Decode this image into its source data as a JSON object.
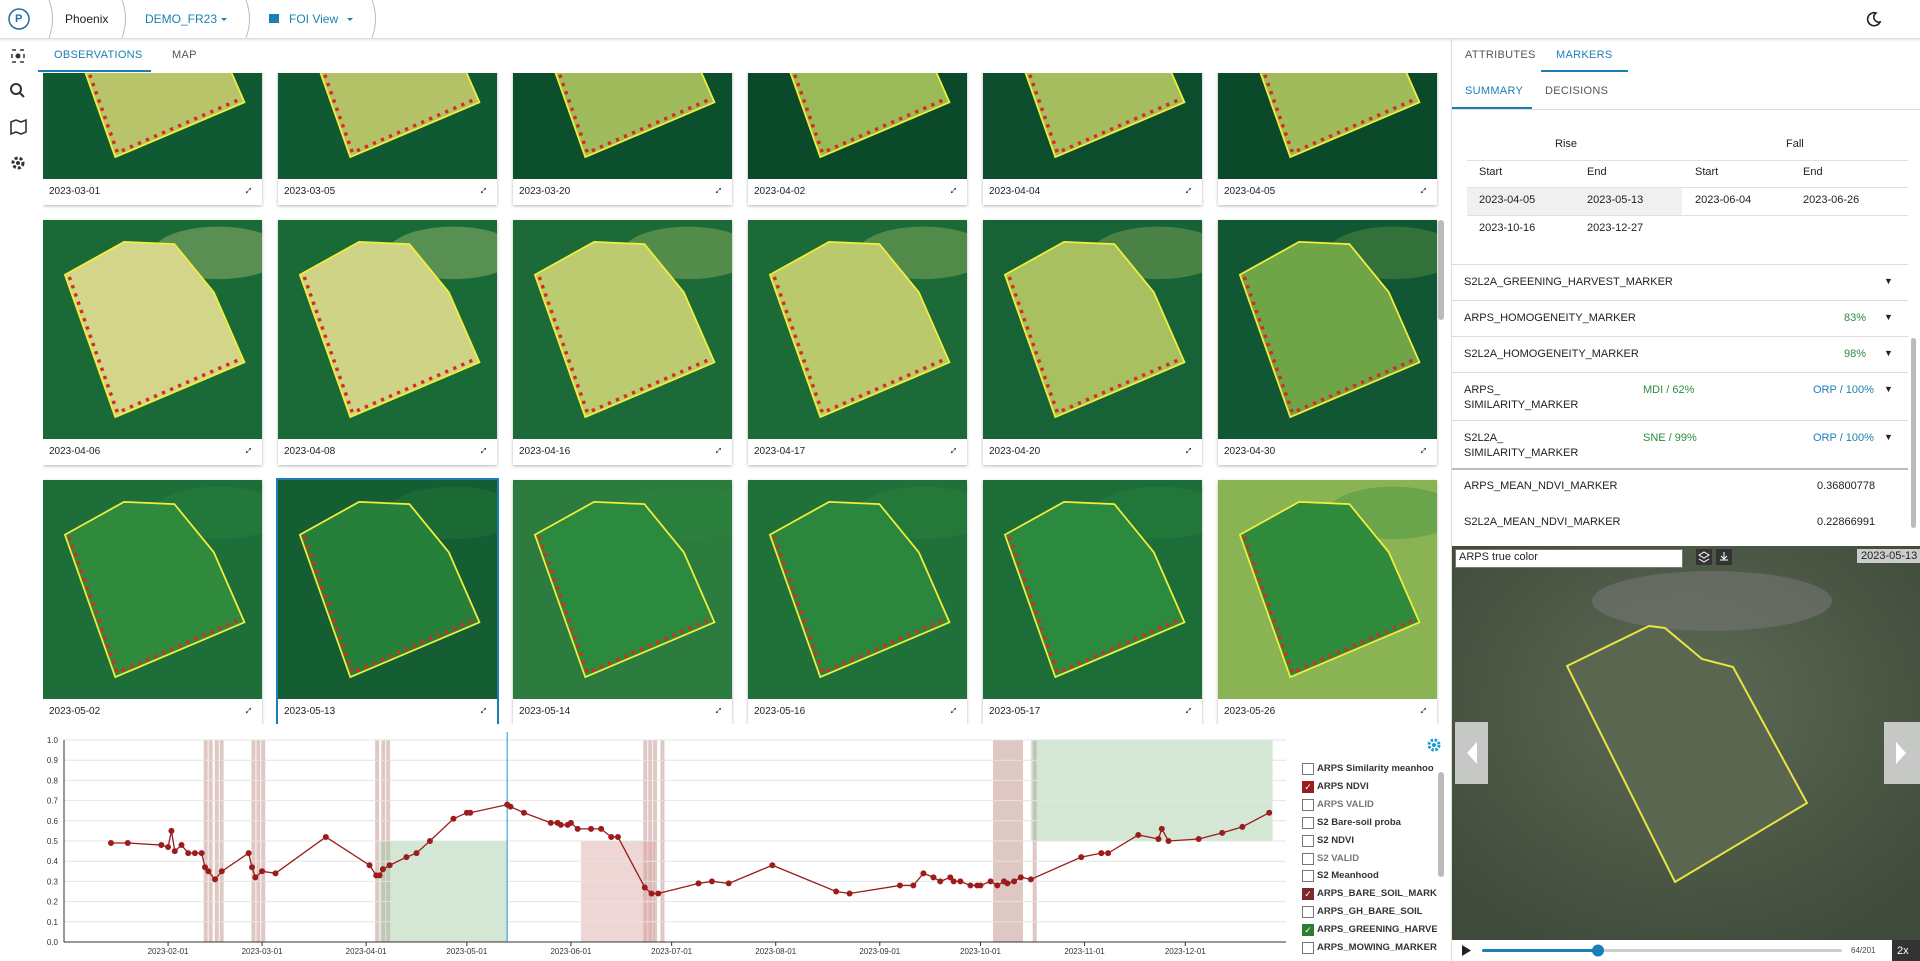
{
  "header": {
    "logo": "P",
    "app": "Phoenix",
    "project": "DEMO_FR23",
    "view": "FOI View"
  },
  "left_tabs": [
    "OBSERVATIONS",
    "MAP"
  ],
  "thumbnails": [
    "2023-03-01",
    "2023-03-05",
    "2023-03-20",
    "2023-04-02",
    "2023-04-04",
    "2023-04-05",
    "2023-04-06",
    "2023-04-08",
    "2023-04-16",
    "2023-04-17",
    "2023-04-20",
    "2023-04-30",
    "2023-05-02",
    "2023-05-13",
    "2023-05-14",
    "2023-05-16",
    "2023-05-17",
    "2023-05-26"
  ],
  "right_tabs": [
    "ATTRIBUTES",
    "MARKERS"
  ],
  "sub_tabs": [
    "SUMMARY",
    "DECISIONS"
  ],
  "summary": {
    "groups": [
      "Rise",
      "Fall"
    ],
    "columns": [
      "Start",
      "End",
      "Start",
      "End"
    ],
    "rows": [
      [
        "2023-04-05",
        "2023-05-13",
        "2023-06-04",
        "2023-06-26"
      ],
      [
        "2023-10-16",
        "2023-12-27"
      ]
    ]
  },
  "markers": [
    {
      "name": [
        "S2L2A_GREENING_HARVEST_MARKER"
      ]
    },
    {
      "name": [
        "ARPS_HOMOGENEITY_MARKER"
      ],
      "value": "83%"
    },
    {
      "name": [
        "S2L2A_HOMOGENEITY_MARKER"
      ],
      "value": "98%"
    },
    {
      "name": [
        "ARPS_",
        "SIMILARITY_MARKER"
      ],
      "left": "MDI / 62%",
      "right": "ORP / 100%"
    },
    {
      "name": [
        "S2L2A_",
        "SIMILARITY_MARKER"
      ],
      "left": "SNE / 99%",
      "right": "ORP / 100%"
    },
    {
      "name": [
        "ARPS_MEAN_NDVI_MARKER"
      ],
      "number": "0.36800778"
    },
    {
      "name": [
        "S2L2A_MEAN_NDVI_MARKER"
      ],
      "number": "0.22866991"
    }
  ],
  "viewer": {
    "layer": "ARPS true color",
    "date": "2023-05-13",
    "frame": "64/201",
    "speed": "2x"
  },
  "chart": {
    "type": "line",
    "x": [
      "2023-01-15",
      "2023-01-20",
      "2023-01-30",
      "2023-02-01",
      "2023-02-02",
      "2023-02-03",
      "2023-02-05",
      "2023-02-07",
      "2023-02-09",
      "2023-02-11",
      "2023-02-12",
      "2023-02-13",
      "2023-02-15",
      "2023-02-17",
      "2023-02-25",
      "2023-02-26",
      "2023-02-27",
      "2023-03-01",
      "2023-03-05",
      "2023-03-20",
      "2023-04-02",
      "2023-04-04",
      "2023-04-05",
      "2023-04-06",
      "2023-04-08",
      "2023-04-13",
      "2023-04-16",
      "2023-04-20",
      "2023-04-27",
      "2023-05-01",
      "2023-05-02",
      "2023-05-13",
      "2023-05-14",
      "2023-05-18",
      "2023-05-26",
      "2023-05-28",
      "2023-05-29",
      "2023-05-31",
      "2023-06-01",
      "2023-06-03",
      "2023-06-07",
      "2023-06-10",
      "2023-06-13",
      "2023-06-15",
      "2023-06-23",
      "2023-06-25",
      "2023-06-27",
      "2023-07-09",
      "2023-07-13",
      "2023-07-18",
      "2023-07-31",
      "2023-08-19",
      "2023-08-23",
      "2023-09-07",
      "2023-09-11",
      "2023-09-14",
      "2023-09-17",
      "2023-09-19",
      "2023-09-22",
      "2023-09-23",
      "2023-09-25",
      "2023-09-28",
      "2023-09-30",
      "2023-10-01",
      "2023-10-04",
      "2023-10-06",
      "2023-10-08",
      "2023-10-09",
      "2023-10-11",
      "2023-10-13",
      "2023-10-16",
      "2023-10-31",
      "2023-11-06",
      "2023-11-08",
      "2023-11-17",
      "2023-11-23",
      "2023-11-24",
      "2023-11-26",
      "2023-12-05",
      "2023-12-12",
      "2023-12-18",
      "2023-12-26"
    ],
    "series": [
      {
        "color": "#9b1c1c",
        "values": [
          0.49,
          0.49,
          0.48,
          0.47,
          0.55,
          0.45,
          0.48,
          0.44,
          0.44,
          0.44,
          0.37,
          0.35,
          0.31,
          0.35,
          0.44,
          0.37,
          0.32,
          0.35,
          0.34,
          0.52,
          0.38,
          0.33,
          0.33,
          0.36,
          0.38,
          0.42,
          0.44,
          0.5,
          0.61,
          0.64,
          0.64,
          0.68,
          0.67,
          0.64,
          0.59,
          0.59,
          0.58,
          0.58,
          0.59,
          0.56,
          0.56,
          0.56,
          0.52,
          0.52,
          0.27,
          0.24,
          0.24,
          0.29,
          0.3,
          0.29,
          0.38,
          0.25,
          0.24,
          0.28,
          0.28,
          0.34,
          0.32,
          0.3,
          0.32,
          0.3,
          0.3,
          0.28,
          0.28,
          0.28,
          0.3,
          0.28,
          0.3,
          0.29,
          0.3,
          0.32,
          0.31,
          0.42,
          0.44,
          0.44,
          0.53,
          0.51,
          0.56,
          0.5,
          0.51,
          0.54,
          0.57,
          0.64
        ]
      }
    ],
    "xlim": [
      "2023-01-01",
      "2023-12-31"
    ],
    "xticks": [
      "2023-02-01",
      "2023-03-01",
      "2023-04-01",
      "2023-05-01",
      "2023-06-01",
      "2023-07-01",
      "2023-08-01",
      "2023-09-01",
      "2023-10-01",
      "2023-11-01",
      "2023-12-01"
    ],
    "ylim": [
      0,
      1
    ],
    "yticks": [
      {
        "value": 0,
        "label": "0.0"
      },
      {
        "value": 0.1,
        "label": "0.1"
      },
      {
        "value": 0.2,
        "label": "0.2"
      },
      {
        "value": 0.3,
        "label": "0.3"
      },
      {
        "value": 0.4,
        "label": "0.4"
      },
      {
        "value": 0.5,
        "label": "0.5"
      },
      {
        "value": 0.6,
        "label": "0.6"
      },
      {
        "value": 0.7,
        "label": "0.7"
      },
      {
        "value": 0.8,
        "label": "0.8"
      },
      {
        "value": 0.9,
        "label": "0.9"
      },
      {
        "value": 1,
        "label": "1.0"
      }
    ],
    "grid": true,
    "legend": [
      {
        "label": "ARPS Similarity meanhoo",
        "checked": false
      },
      {
        "label": "ARPS NDVI",
        "checked": true,
        "color": "#9b1c1c"
      },
      {
        "label": "ARPS VALID",
        "checked": false
      },
      {
        "label": "S2 Bare-soil proba",
        "checked": false
      },
      {
        "label": "S2 NDVI",
        "checked": false
      },
      {
        "label": "S2 VALID",
        "checked": false
      },
      {
        "label": "S2 Meanhood",
        "checked": false
      },
      {
        "label": "ARPS_BARE_SOIL_MARK",
        "checked": true,
        "color": "#7a2a2a"
      },
      {
        "label": "ARPS_GH_BARE_SOIL",
        "checked": false
      },
      {
        "label": "ARPS_GREENING_HARVE",
        "checked": true,
        "color": "#2e7d32"
      },
      {
        "label": "ARPS_MOWING_MARKER",
        "checked": false
      }
    ]
  }
}
